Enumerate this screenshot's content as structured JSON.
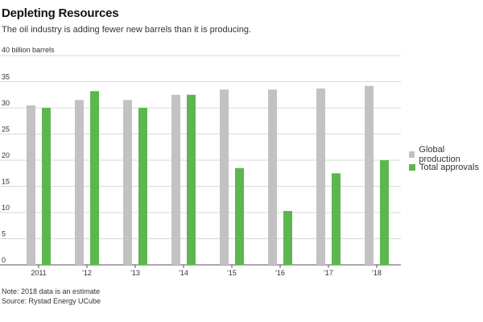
{
  "header": {
    "title": "Depleting Resources",
    "subtitle": "The oil industry is adding fewer new barrels than it is producing."
  },
  "footer": {
    "note": "Note: 2018 data is an estimate",
    "source": "Source: Rystad Energy UCube"
  },
  "colors": {
    "production": "#c2c2c2",
    "approvals": "#5cb84e",
    "grid": "#d9d9d9",
    "axis": "#555555"
  },
  "chart_data": {
    "type": "bar",
    "title": "Depleting Resources",
    "subtitle": "The oil industry is adding fewer new barrels than it is producing.",
    "ylabel": "40 billion barrels",
    "xlabel": "",
    "ylim": [
      0,
      40
    ],
    "yticks": [
      0,
      5,
      10,
      15,
      20,
      25,
      30,
      35
    ],
    "top_tick_label": "40 billion barrels",
    "categories": [
      "2011",
      "'12",
      "'13",
      "'14",
      "'15",
      "'16",
      "'17",
      "'18"
    ],
    "series": [
      {
        "name": "Global production",
        "color": "#c2c2c2",
        "values": [
          30.5,
          31.5,
          31.5,
          32.5,
          33.5,
          33.5,
          33.7,
          34.2
        ]
      },
      {
        "name": "Total approvals",
        "color": "#5cb84e",
        "values": [
          30,
          33.2,
          30,
          32.5,
          18.5,
          10.3,
          17.5,
          20
        ]
      }
    ],
    "legend_position": "right",
    "grid": true
  }
}
